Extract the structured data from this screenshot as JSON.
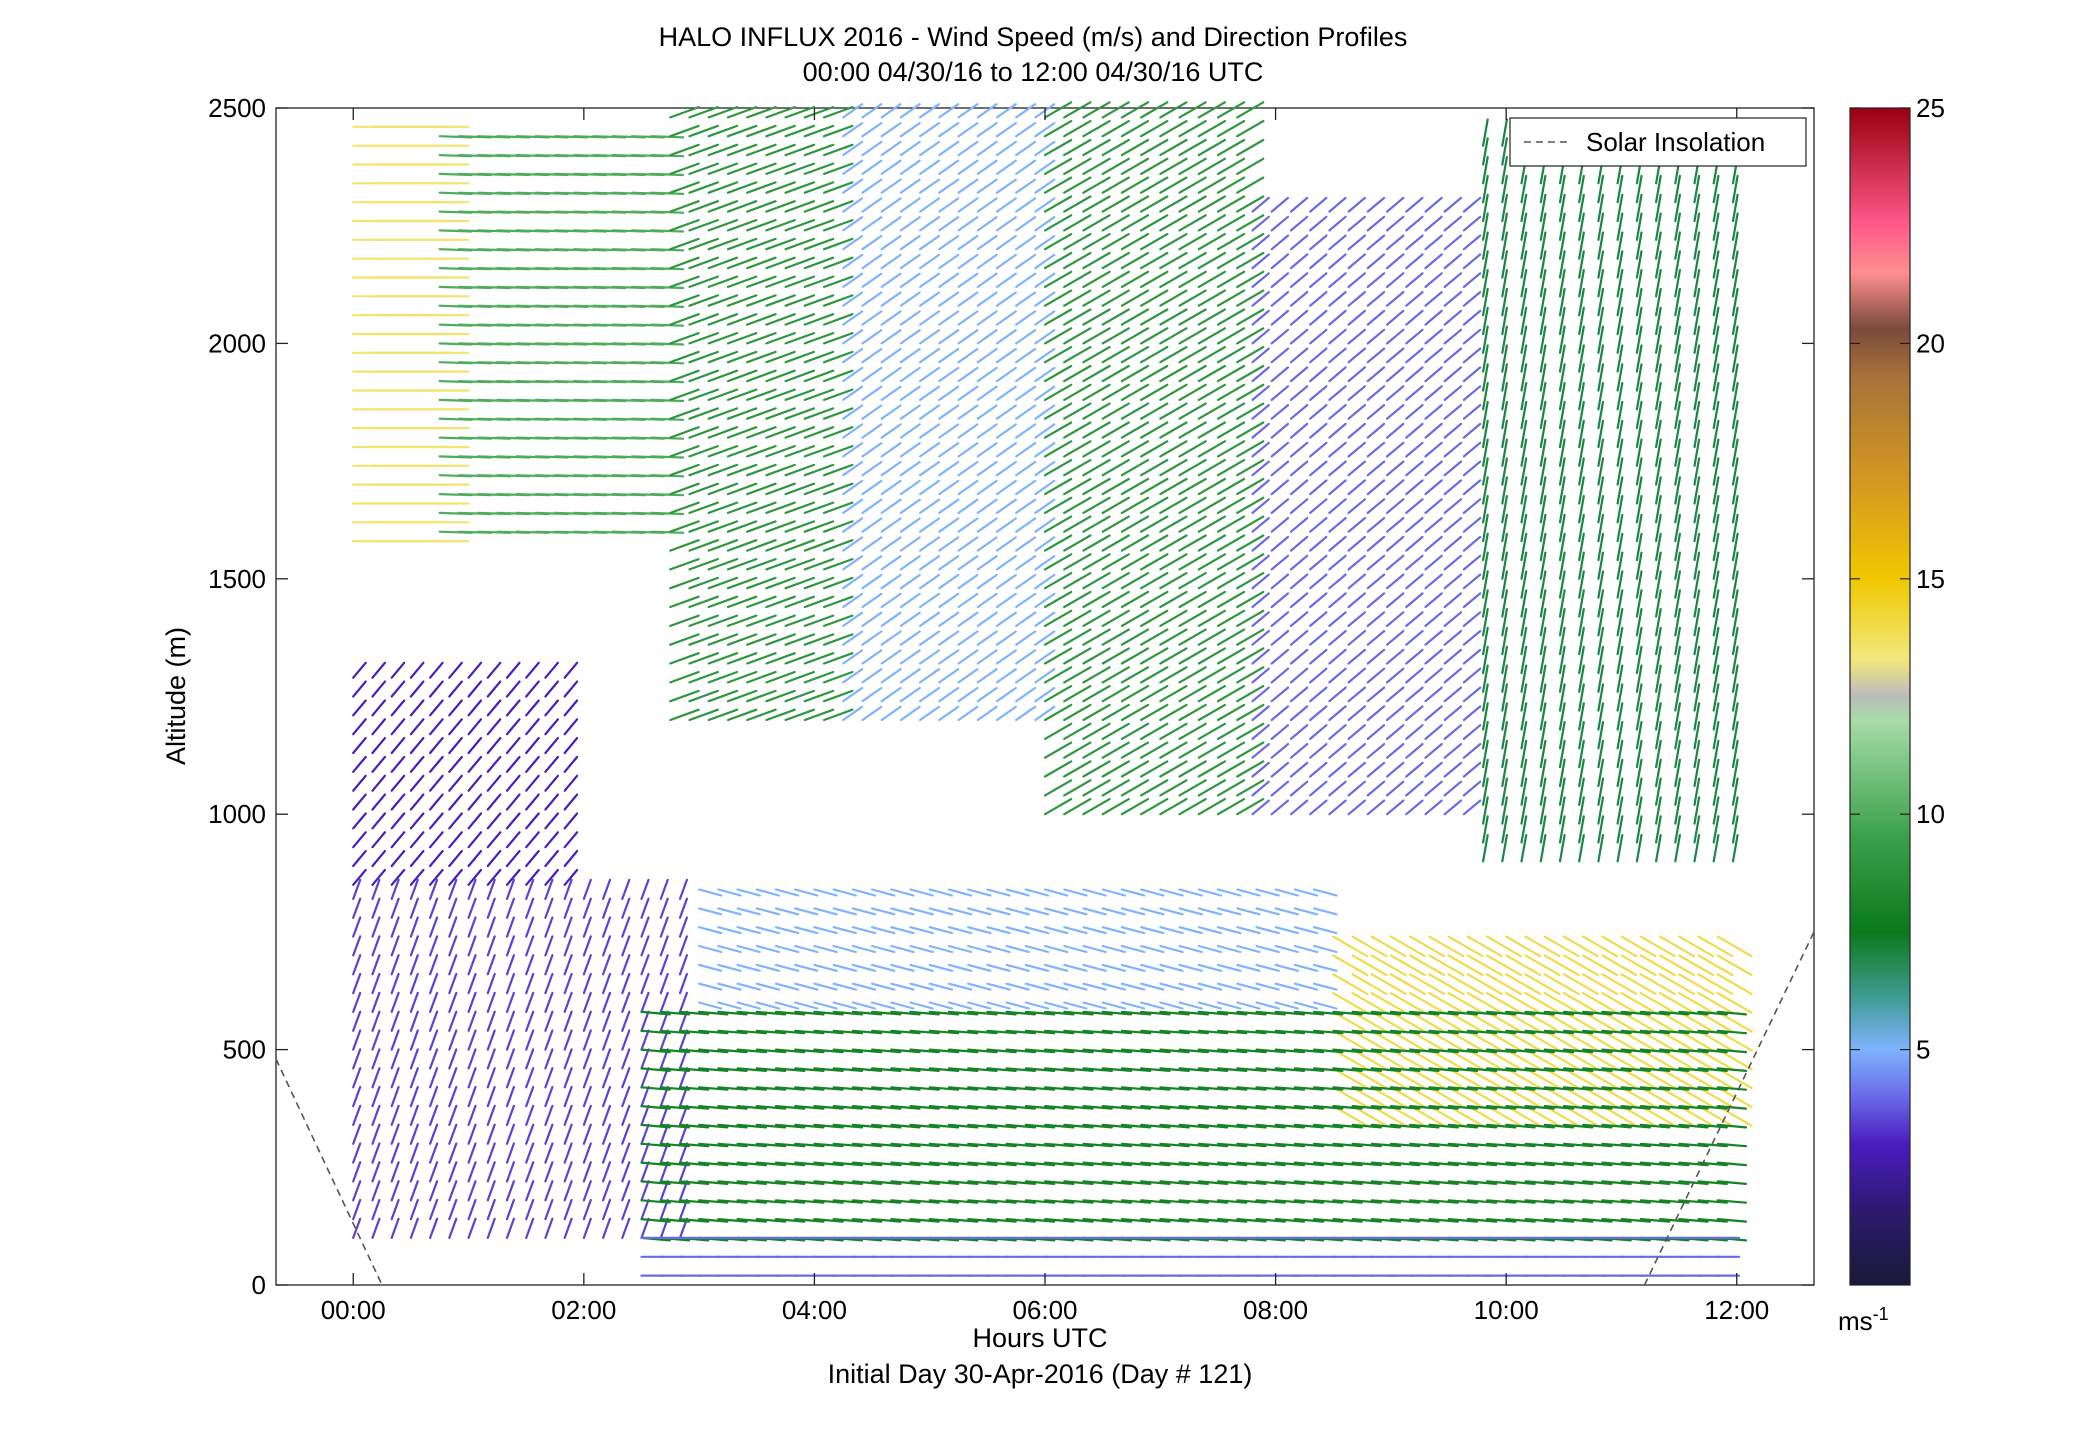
{
  "chart_data": {
    "type": "wind-barb-profile",
    "title": "HALO INFLUX 2016 - Wind Speed (m/s) and Direction Profiles",
    "subtitle": "00:00 04/30/16 to 12:00 04/30/16  UTC",
    "xlabel": "Hours UTC",
    "xlabel2": "Initial Day 30-Apr-2016 (Day # 121)",
    "ylabel": "Altitude (m)",
    "xlim": [
      -0.67,
      12.67
    ],
    "ylim": [
      0,
      2500
    ],
    "x_ticks": [
      {
        "value": 0,
        "label": "00:00"
      },
      {
        "value": 2,
        "label": "02:00"
      },
      {
        "value": 4,
        "label": "04:00"
      },
      {
        "value": 6,
        "label": "06:00"
      },
      {
        "value": 8,
        "label": "08:00"
      },
      {
        "value": 10,
        "label": "10:00"
      },
      {
        "value": 12,
        "label": "12:00"
      }
    ],
    "y_ticks": [
      {
        "value": 0,
        "label": "0"
      },
      {
        "value": 500,
        "label": "500"
      },
      {
        "value": 1000,
        "label": "1000"
      },
      {
        "value": 1500,
        "label": "1500"
      },
      {
        "value": 2000,
        "label": "2000"
      },
      {
        "value": 2500,
        "label": "2500"
      }
    ],
    "legend": {
      "entries": [
        "Solar Insolation"
      ],
      "position": "top-right"
    },
    "solar_insolation": {
      "segments": [
        {
          "x": [
            -0.67,
            0.25
          ],
          "y": [
            480,
            0
          ]
        },
        {
          "x": [
            11.2,
            12.67
          ],
          "y": [
            0,
            750
          ]
        }
      ]
    },
    "colorbar": {
      "min": 0,
      "max": 25,
      "unit": "ms",
      "unit_exponent": "-1",
      "ticks": [
        {
          "value": 5,
          "label": "5"
        },
        {
          "value": 10,
          "label": "10"
        },
        {
          "value": 15,
          "label": "15"
        },
        {
          "value": 20,
          "label": "20"
        },
        {
          "value": 25,
          "label": "25"
        }
      ],
      "stops": [
        {
          "v": 0,
          "color": "#1a1a3a"
        },
        {
          "v": 1.5,
          "color": "#2a1a6a"
        },
        {
          "v": 3,
          "color": "#4a1cc0"
        },
        {
          "v": 4,
          "color": "#6a6ae8"
        },
        {
          "v": 5,
          "color": "#7fb3ff"
        },
        {
          "v": 6.2,
          "color": "#3a9a8a"
        },
        {
          "v": 7.5,
          "color": "#0a7a1a"
        },
        {
          "v": 9.5,
          "color": "#3aa04a"
        },
        {
          "v": 12,
          "color": "#a8dca8"
        },
        {
          "v": 12.5,
          "color": "#bbbbbb"
        },
        {
          "v": 13.3,
          "color": "#f2e87a"
        },
        {
          "v": 15,
          "color": "#f0c800"
        },
        {
          "v": 17,
          "color": "#d49a20"
        },
        {
          "v": 19.3,
          "color": "#a8723a"
        },
        {
          "v": 20.3,
          "color": "#7a4a3a"
        },
        {
          "v": 21.5,
          "color": "#ff9090"
        },
        {
          "v": 22.5,
          "color": "#ff5a8a"
        },
        {
          "v": 25,
          "color": "#9a0010"
        }
      ]
    },
    "x_time_step_h": 0.1667,
    "altitude_step_m": 40,
    "wind_regimes": [
      {
        "t": [
          0.0,
          0.75
        ],
        "alt": [
          1580,
          2460
        ],
        "speed": 13.5,
        "dir_deg": 270
      },
      {
        "t": [
          0.75,
          2.75
        ],
        "alt": [
          1600,
          2460
        ],
        "speed": 10,
        "dir_deg": 272
      },
      {
        "t": [
          2.75,
          4.25
        ],
        "alt": [
          1200,
          2480
        ],
        "speed": 9,
        "dir_deg": 250
      },
      {
        "t": [
          4.25,
          6.0
        ],
        "alt": [
          1200,
          2480
        ],
        "speed": 5,
        "dir_deg": 235
      },
      {
        "t": [
          6.0,
          7.8
        ],
        "alt": [
          1000,
          2480
        ],
        "speed": 9,
        "dir_deg": 240
      },
      {
        "t": [
          7.8,
          9.8
        ],
        "alt": [
          1000,
          2300
        ],
        "speed": 4,
        "dir_deg": 230
      },
      {
        "t": [
          9.8,
          12.0
        ],
        "alt": [
          900,
          2450
        ],
        "speed": 7,
        "dir_deg": 190
      },
      {
        "t": [
          0.0,
          2.0
        ],
        "alt": [
          850,
          1300
        ],
        "speed": 3,
        "dir_deg": 220
      },
      {
        "t": [
          0.0,
          3.0
        ],
        "alt": [
          100,
          850
        ],
        "speed": 3.5,
        "dir_deg": 200
      },
      {
        "t": [
          3.0,
          8.5
        ],
        "alt": [
          600,
          850
        ],
        "speed": 5,
        "dir_deg": 285
      },
      {
        "t": [
          8.5,
          12.0
        ],
        "alt": [
          380,
          750
        ],
        "speed": 14,
        "dir_deg": 300
      },
      {
        "t": [
          2.5,
          12.0
        ],
        "alt": [
          100,
          600
        ],
        "speed": 8,
        "dir_deg": 275
      },
      {
        "t": [
          2.5,
          12.0
        ],
        "alt": [
          20,
          100
        ],
        "speed": 4,
        "dir_deg": 270
      }
    ]
  }
}
